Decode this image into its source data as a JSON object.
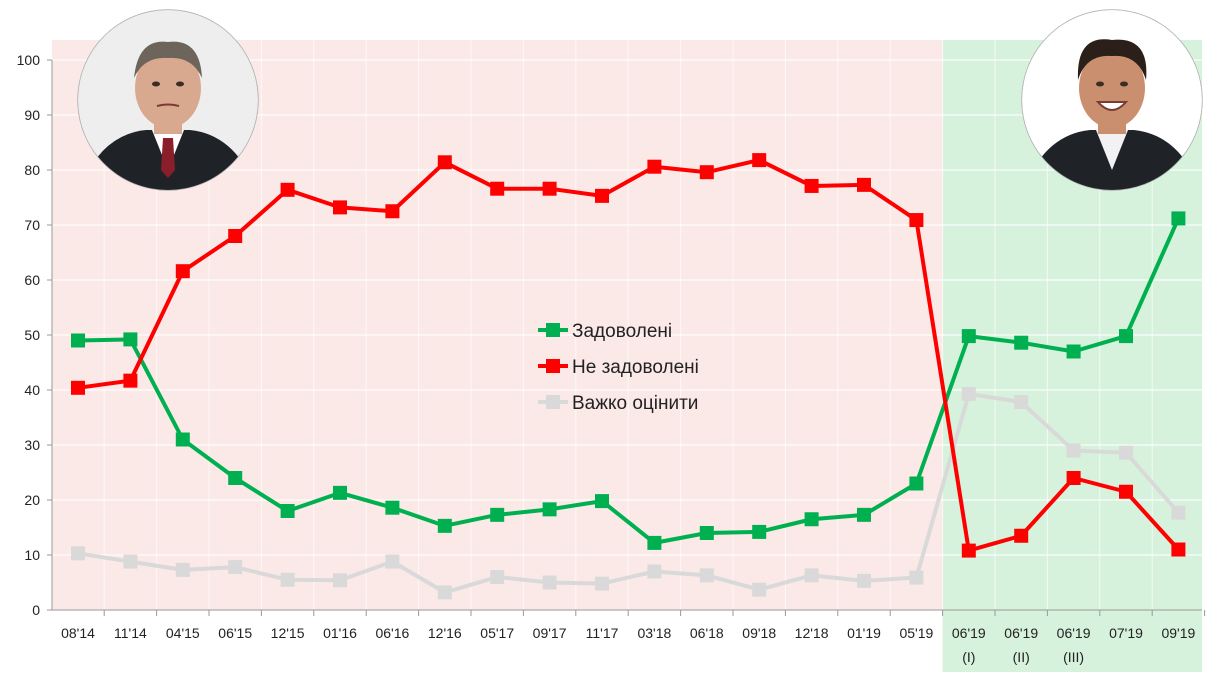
{
  "chart_data": {
    "type": "line",
    "categories": [
      "08'14",
      "11'14",
      "04'15",
      "06'15",
      "12'15",
      "01'16",
      "06'16",
      "12'16",
      "05'17",
      "09'17",
      "11'17",
      "03'18",
      "06'18",
      "09'18",
      "12'18",
      "01'19",
      "05'19",
      "06'19",
      "06'19",
      "06'19",
      "07'19",
      "09'19"
    ],
    "category_sublabels": [
      "",
      "",
      "",
      "",
      "",
      "",
      "",
      "",
      "",
      "",
      "",
      "",
      "",
      "",
      "",
      "",
      "",
      "(I)",
      "(II)",
      "(III)",
      "",
      ""
    ],
    "ylim": [
      0,
      100
    ],
    "yticks": [
      0,
      10,
      20,
      30,
      40,
      50,
      60,
      70,
      80,
      90,
      100
    ],
    "grid": true,
    "legend_position": "center",
    "regions": [
      {
        "from_index": 0,
        "to_index": 16,
        "color": "#fbe9e7"
      },
      {
        "from_index": 17,
        "to_index": 21,
        "color": "#d6f2dc"
      }
    ],
    "portraits": [
      {
        "name": "portrait-poroshenko",
        "region_index": 0
      },
      {
        "name": "portrait-zelensky",
        "region_index": 1
      }
    ],
    "series": [
      {
        "name": "Задоволені",
        "color": "#00b050",
        "values": [
          49,
          49.2,
          31,
          24,
          18,
          21.3,
          18.6,
          15.3,
          17.3,
          18.3,
          19.8,
          12.2,
          14,
          14.2,
          16.5,
          17.3,
          23,
          49.8,
          48.6,
          47,
          49.8,
          71.2
        ]
      },
      {
        "name": "Не задоволені",
        "color": "#ff0000",
        "values": [
          40.4,
          41.7,
          61.6,
          68,
          76.4,
          73.2,
          72.5,
          81.4,
          76.6,
          76.6,
          75.3,
          80.6,
          79.6,
          81.8,
          77.1,
          77.3,
          70.9,
          10.8,
          13.5,
          24,
          21.5,
          11
        ]
      },
      {
        "name": "Важко оцінити",
        "color": "#d9d9d9",
        "values": [
          10.3,
          8.8,
          7.3,
          7.8,
          5.5,
          5.4,
          8.8,
          3.2,
          6,
          5,
          4.8,
          7,
          6.3,
          3.7,
          6.3,
          5.3,
          5.9,
          39.3,
          37.8,
          29,
          28.6,
          17.7
        ]
      }
    ]
  }
}
